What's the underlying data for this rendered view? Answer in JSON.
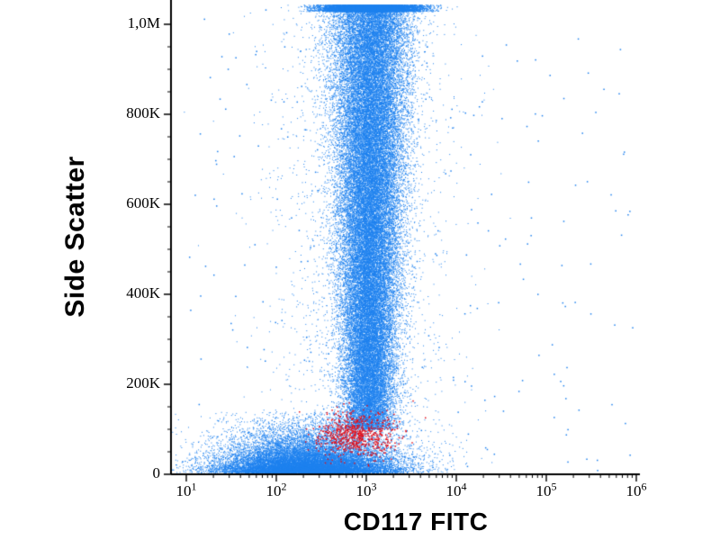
{
  "figure": {
    "background": "#ffffff",
    "axis_color": "#000000"
  },
  "chart_data": {
    "type": "scatter",
    "title": "",
    "xlabel": "CD117 FITC",
    "ylabel": "Side Scatter",
    "x_scale": "log10",
    "y_scale": "linear",
    "x_range_log10": [
      1,
      6
    ],
    "y_range": [
      0,
      1050000
    ],
    "grid": false,
    "legend": "none",
    "x_ticks": [
      {
        "base": "10",
        "exp": "1",
        "log10": 1
      },
      {
        "base": "10",
        "exp": "2",
        "log10": 2
      },
      {
        "base": "10",
        "exp": "3",
        "log10": 3
      },
      {
        "base": "10",
        "exp": "4",
        "log10": 4
      },
      {
        "base": "10",
        "exp": "5",
        "log10": 5
      },
      {
        "base": "10",
        "exp": "6",
        "log10": 6
      }
    ],
    "y_ticks": [
      {
        "label": "0",
        "value": 0
      },
      {
        "label": "200K",
        "value": 200000
      },
      {
        "label": "400K",
        "value": 400000
      },
      {
        "label": "600K",
        "value": 600000
      },
      {
        "label": "800K",
        "value": 800000
      },
      {
        "label": "1,0M",
        "value": 1000000
      }
    ],
    "colors": {
      "blue": "#1e80ee",
      "red": "#e0101c"
    },
    "populations": [
      {
        "name": "main-population-blue",
        "type": "column",
        "color": "#1e80ee",
        "count": 52000,
        "dot": 1,
        "x_mean": 3.02,
        "x_sd_base": 0.13,
        "x_sd_top": 0.22,
        "y_min": 100000,
        "y_max": 1230000,
        "y_pow": 0.95
      },
      {
        "name": "low-ssc-debris-blue",
        "type": "blob_expy",
        "color": "#1e80ee",
        "count": 17000,
        "dot": 1,
        "x_mean": 2.35,
        "x_sd": 0.5,
        "y_base": 4000,
        "y_scale": 30000,
        "y_clip": 140000
      },
      {
        "name": "background-halo-blue",
        "type": "halo",
        "color": "#1e80ee",
        "count": 2400,
        "dot": 1,
        "x_mean": 2.95,
        "x_sd": 0.5,
        "y_min": 0,
        "y_max": 1040000
      },
      {
        "name": "sparse-outliers-blue",
        "type": "uniform",
        "color": "#1e80ee",
        "count": 240,
        "dot": 1.5,
        "x_min": 1.0,
        "x_max": 6.0,
        "y_min": 0,
        "y_max": 1040000
      },
      {
        "name": "cd117-positive-cluster-red",
        "type": "gauss2d",
        "color": "#e0101c",
        "count": 650,
        "dot": 1.5,
        "x_mean": 2.88,
        "x_sd": 0.22,
        "y_mean": 88000,
        "y_sd": 24000,
        "x_clip": [
          2.25,
          3.65
        ],
        "y_clip": [
          20000,
          180000
        ]
      }
    ]
  }
}
